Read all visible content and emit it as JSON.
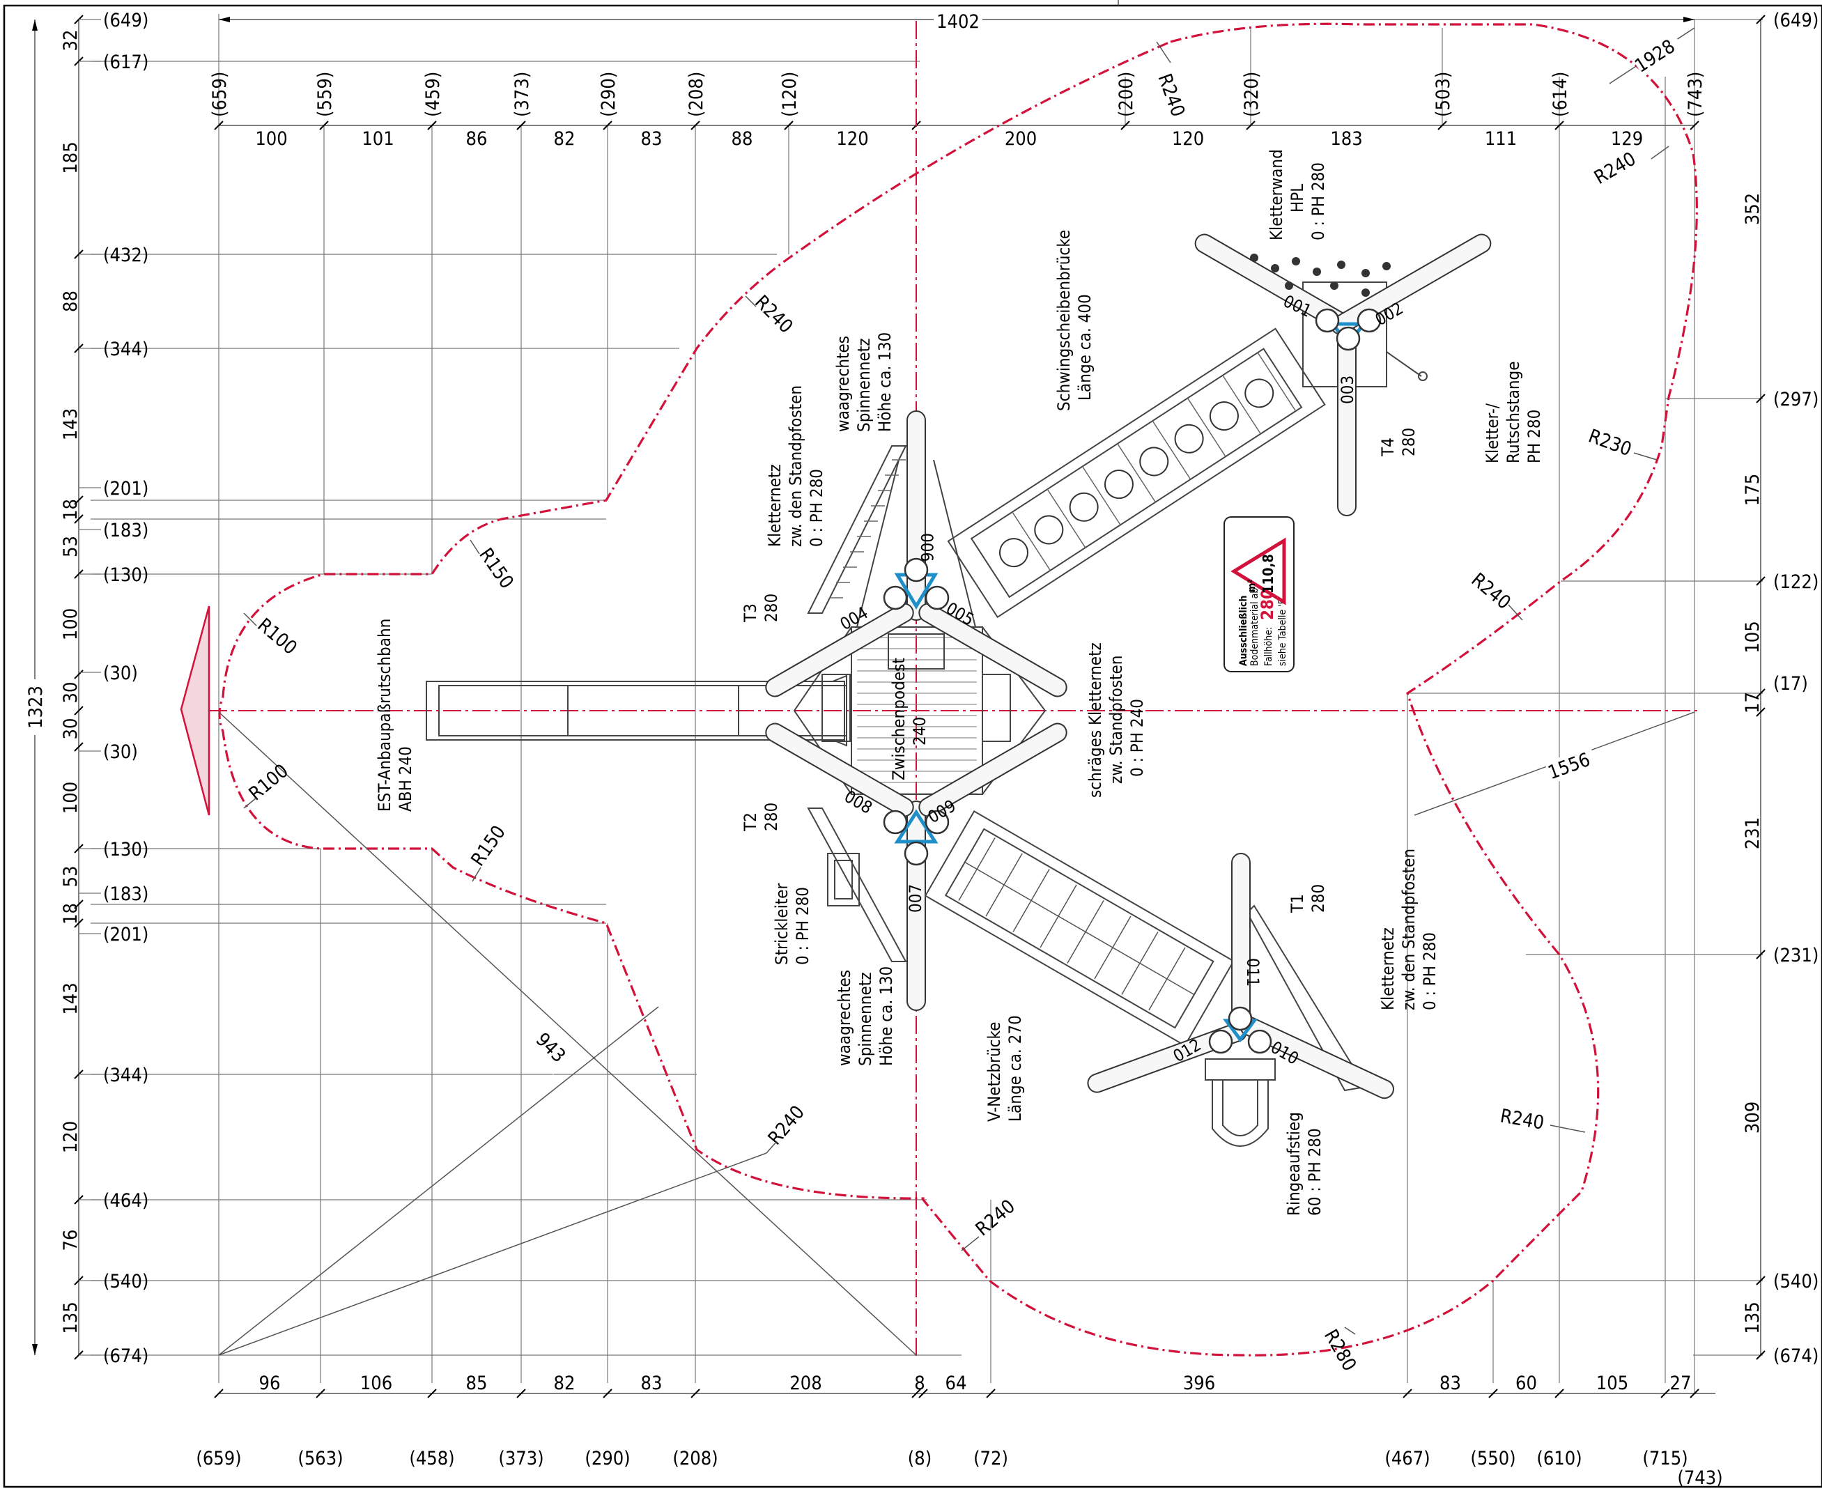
{
  "drawing": {
    "overall_width": "1402",
    "overall_height": "1323",
    "diagonals": {
      "diag_1928": "1928",
      "diag_1556": "1556",
      "diag_943": "943"
    },
    "top_coords": [
      "(659)",
      "(559)",
      "(459)",
      "(373)",
      "(290)",
      "(208)",
      "(120)",
      "(200)",
      "(320)",
      "(503)",
      "(614)",
      "(743)"
    ],
    "top_dims": [
      "100",
      "101",
      "86",
      "82",
      "83",
      "88",
      "120",
      "200",
      "120",
      "183",
      "111",
      "129"
    ],
    "bottom_dims": [
      "96",
      "106",
      "85",
      "82",
      "83",
      "208",
      "8",
      "64",
      "396",
      "83",
      "60",
      "105",
      "27"
    ],
    "bottom_coords": [
      "(659)",
      "(563)",
      "(458)",
      "(373)",
      "(290)",
      "(208)",
      "(8)",
      "(72)",
      "(467)",
      "(550)",
      "(610)",
      "(715)",
      "(743)"
    ],
    "left_coords": [
      "(649)",
      "(617)",
      "(432)",
      "(344)",
      "(201)",
      "(183)",
      "(130)",
      "(30)",
      "(30)",
      "(130)",
      "(183)",
      "(201)",
      "(344)",
      "(464)",
      "(540)",
      "(674)"
    ],
    "left_dims": [
      "32",
      "185",
      "88",
      "143",
      "18",
      "53",
      "100",
      "30",
      "30",
      "100",
      "53",
      "18",
      "143",
      "120",
      "76",
      "135"
    ],
    "right_coords": [
      "(649)",
      "(297)",
      "(122)",
      "(17)",
      "(231)",
      "(540)",
      "(674)"
    ],
    "right_dims": [
      "352",
      "175",
      "105",
      "17",
      "231",
      "309",
      "135"
    ],
    "radii": {
      "r240_top": "R240",
      "r240_upper_left": "R240",
      "r150_upper": "R150",
      "r100_upper": "R100",
      "r100_lower": "R100",
      "r150_lower": "R150",
      "r240_lower_left": "R240",
      "r240_lower_mid": "R240",
      "r280": "R280",
      "r240_lower_right": "R240",
      "r240_right": "R240",
      "r230": "R230",
      "r240_top_right": "R240"
    },
    "posts": [
      "001",
      "002",
      "003",
      "004",
      "005",
      "006",
      "007",
      "008",
      "009",
      "010",
      "011",
      "012"
    ],
    "labels": {
      "slide_1": "EST-Anbaupaßrutschbahn",
      "slide_2": "ABH 240",
      "platform_1": "Zwischenpodest",
      "platform_2": "240",
      "t3_1": "T3",
      "t3_2": "280",
      "t2_1": "T2",
      "t2_2": "280",
      "t1_1": "T1",
      "t1_2": "280",
      "t4_1": "T4",
      "t4_2": "280",
      "net_a_1": "Kletternetz",
      "net_a_2": "zw. den Standpfosten",
      "net_a_3": "0 : PH 280",
      "spider_a_1": "waagrechtes",
      "spider_a_2": "Spinnennetz",
      "spider_a_3": "Höhe ca. 130",
      "bridge_a_1": "Schwingscheibenbrücke",
      "bridge_a_2": "Länge ca. 400",
      "wall_1": "Kletterwand",
      "wall_2": "HPL",
      "wall_3": "0 : PH 280",
      "pole_1": "Kletter-/",
      "pole_2": "Rutschstange",
      "pole_3": "PH 280",
      "net_b_1": "schräges Kletternetz",
      "net_b_2": "zw. Standpfosten",
      "net_b_3": "0 : PH 240",
      "ladder_1": "Strickleiter",
      "ladder_2": "0 : PH 280",
      "spider_b_1": "waagrechtes",
      "spider_b_2": "Spinnennetz",
      "spider_b_3": "Höhe ca. 130",
      "bridge_b_1": "V-Netzbrücke",
      "bridge_b_2": "Länge ca. 270",
      "ring_1": "Ringeaufstieg",
      "ring_2": "60 : PH 280",
      "net_c_1": "Kletternetz",
      "net_c_2": "zw. den Standpfosten",
      "net_c_3": "0 : PH 280"
    },
    "badge": {
      "area_value": "110,8",
      "area_unit": "m²",
      "line_1": "Ausschließlich",
      "line_2": "Bodenmaterial ab",
      "fall_label": "Fallhöhe:",
      "fall_height": "280cm",
      "line_4": "siehe Tabelle 'Bodenarten'"
    }
  },
  "colors": {
    "safety_line": "#d2123a",
    "post_connector": "#1e8fc8",
    "ink": "#000000"
  }
}
